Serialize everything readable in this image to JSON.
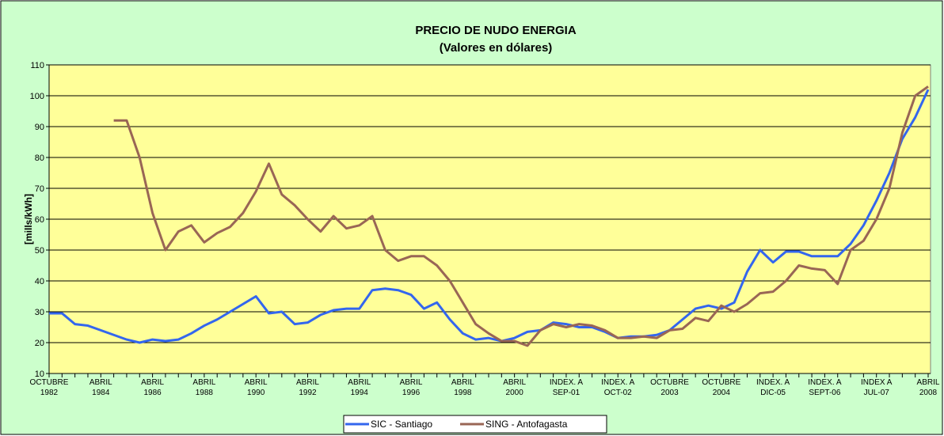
{
  "chart_data": {
    "type": "line",
    "title": "PRECIO DE NUDO ENERGIA",
    "subtitle": "(Valores en dólares)",
    "y_label": "[mills/kWh]",
    "categories": [
      [
        "OCTUBRE",
        "1982"
      ],
      null,
      null,
      null,
      [
        "ABRIL",
        "1984"
      ],
      null,
      null,
      null,
      [
        "ABRIL",
        "1986"
      ],
      null,
      null,
      null,
      [
        "ABRIL",
        "1988"
      ],
      null,
      null,
      null,
      [
        "ABRIL",
        "1990"
      ],
      null,
      null,
      null,
      [
        "ABRIL",
        "1992"
      ],
      null,
      null,
      null,
      [
        "ABRIL",
        "1994"
      ],
      null,
      null,
      null,
      [
        "ABRIL",
        "1996"
      ],
      null,
      null,
      null,
      [
        "ABRIL",
        "1998"
      ],
      null,
      null,
      null,
      [
        "ABRIL",
        "2000"
      ],
      null,
      null,
      null,
      [
        "INDEX. A",
        "SEP-01"
      ],
      null,
      null,
      null,
      [
        "INDEX. A",
        "OCT-02"
      ],
      null,
      null,
      null,
      [
        "OCTUBRE",
        "2003"
      ],
      null,
      null,
      null,
      [
        "OCTUBRE",
        "2004"
      ],
      null,
      null,
      null,
      [
        "INDEX. A",
        "DIC-05"
      ],
      null,
      null,
      null,
      [
        "INDEX. A",
        "SEPT-06"
      ],
      null,
      null,
      null,
      [
        "INDEX A",
        "JUL-07"
      ],
      null,
      null,
      null,
      [
        "ABRIL",
        "2008"
      ]
    ],
    "series": [
      {
        "name": "SIC - Santiago",
        "color": "#3366ee",
        "values": [
          29.5,
          29.5,
          26,
          25.5,
          24,
          22.5,
          21,
          20,
          21,
          20.5,
          21,
          23,
          25.5,
          27.5,
          30,
          32.5,
          35,
          29.5,
          30,
          26,
          26.5,
          29,
          30.5,
          31,
          31,
          37,
          37.5,
          37,
          35.5,
          31,
          33,
          27.5,
          23,
          21,
          21.5,
          20.5,
          21.5,
          23.5,
          24,
          26.5,
          26,
          25,
          25,
          23.5,
          21.5,
          22,
          22,
          22.5,
          24,
          27.5,
          31,
          32,
          31,
          33,
          43,
          50,
          46,
          49.5,
          49.5,
          48,
          48,
          48,
          52,
          58,
          66,
          75,
          86,
          93,
          102
        ]
      },
      {
        "name": "SING - Antofagasta",
        "color": "#996655",
        "values": [
          null,
          null,
          null,
          null,
          null,
          92,
          92,
          80,
          62,
          50,
          56,
          58,
          52.5,
          55.5,
          57.5,
          62,
          69,
          78,
          68,
          64.5,
          60,
          56,
          61,
          57,
          58,
          61,
          50,
          46.5,
          48,
          48,
          45,
          40,
          33,
          26,
          23,
          20.5,
          20.5,
          19,
          24,
          26,
          25,
          26,
          25.5,
          24,
          21.5,
          21.5,
          22,
          21.5,
          24,
          24.5,
          28,
          27,
          32,
          30,
          32.5,
          36,
          36.5,
          40,
          45,
          44,
          43.5,
          39,
          50,
          53,
          60,
          70,
          88,
          100,
          103
        ]
      }
    ],
    "ylim": [
      10,
      110
    ],
    "yticks": [
      10,
      20,
      30,
      40,
      50,
      60,
      70,
      80,
      90,
      100,
      110
    ],
    "grid": true,
    "background": "#ccffcc",
    "plot_background": "#ffff99"
  }
}
